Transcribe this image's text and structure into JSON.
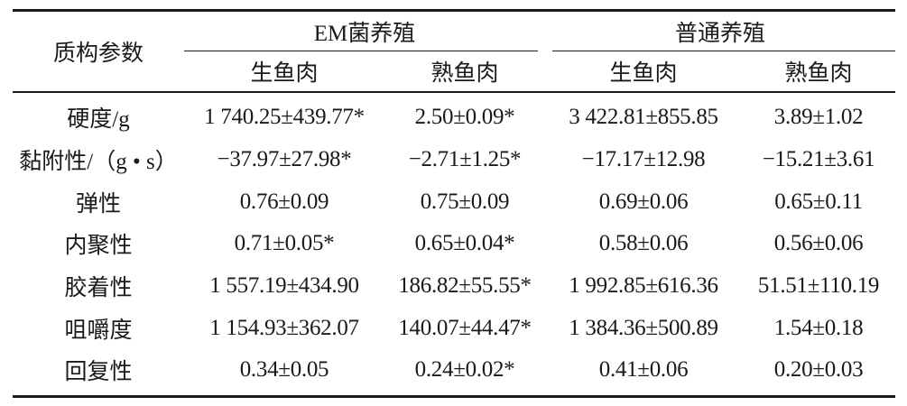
{
  "table": {
    "header": {
      "param_label": "质构参数",
      "groups": [
        "EM菌养殖",
        "普通养殖"
      ],
      "subheaders": [
        "生鱼肉",
        "熟鱼肉",
        "生鱼肉",
        "熟鱼肉"
      ]
    },
    "rows": [
      {
        "param": "硬度/g",
        "values": [
          "1 740.25±439.77*",
          "2.50±0.09*",
          "3 422.81±855.85",
          "3.89±1.02"
        ]
      },
      {
        "param": "黏附性/（g • s）",
        "values": [
          "−37.97±27.98*",
          "−2.71±1.25*",
          "−17.17±12.98",
          "−15.21±3.61"
        ]
      },
      {
        "param": "弹性",
        "values": [
          "0.76±0.09",
          "0.75±0.09",
          "0.69±0.06",
          "0.65±0.11"
        ]
      },
      {
        "param": "内聚性",
        "values": [
          "0.71±0.05*",
          "0.65±0.04*",
          "0.58±0.06",
          "0.56±0.06"
        ]
      },
      {
        "param": "胶着性",
        "values": [
          "1 557.19±434.90",
          "186.82±55.55*",
          "1 992.85±616.36",
          "51.51±110.19"
        ]
      },
      {
        "param": "咀嚼度",
        "values": [
          "1 154.93±362.07",
          "140.07±44.47*",
          "1 384.36±500.89",
          "1.54±0.18"
        ]
      },
      {
        "param": "回复性",
        "values": [
          "0.34±0.05",
          "0.24±0.02*",
          "0.41±0.06",
          "0.20±0.03"
        ]
      }
    ]
  }
}
